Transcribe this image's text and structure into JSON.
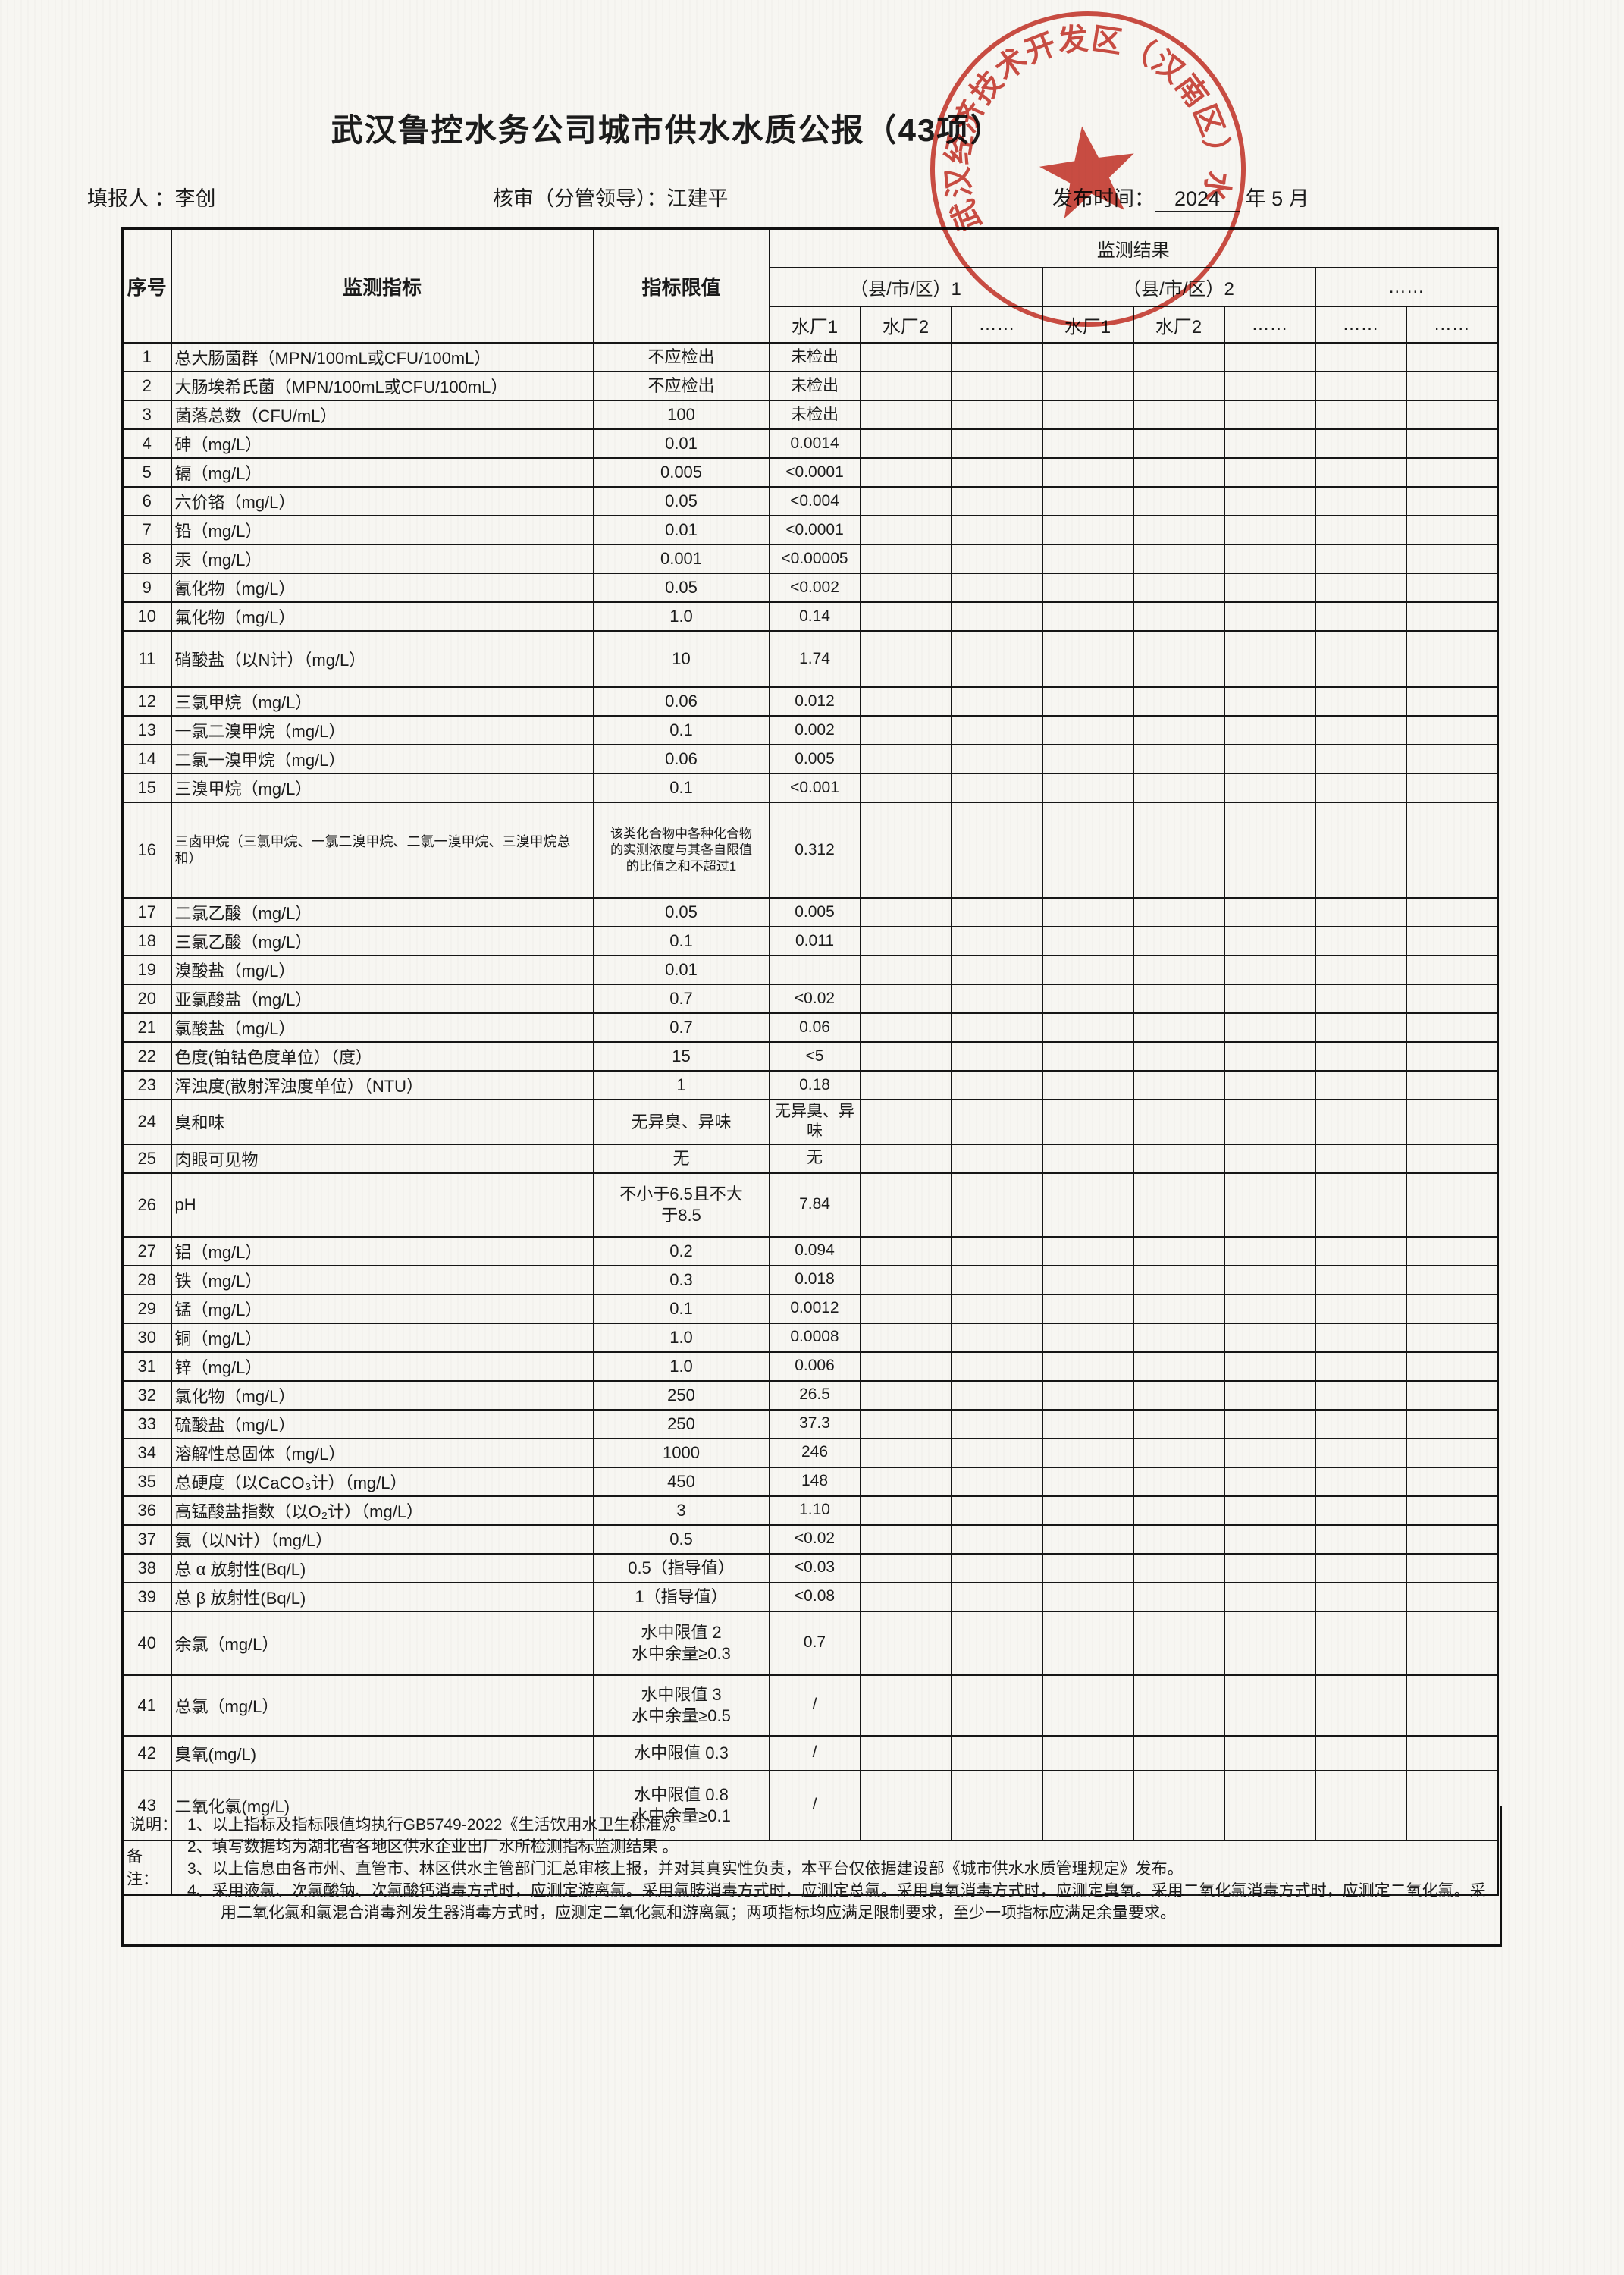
{
  "header": {
    "title": "武汉鲁控水务公司城市供水水质公报（43项）",
    "filler_label": "填报人 ：",
    "filler_name": "李创",
    "reviewer_label": "核审（分管领导）：",
    "reviewer_name": "江建平",
    "publish_label": "发布时间：",
    "publish_year": "2024",
    "publish_suffix": "年 5 月"
  },
  "stamp": {
    "ring_text": "武汉经济技术开发区（汉南区）水务局",
    "color": "#c5281c"
  },
  "table": {
    "head": {
      "index": "序号",
      "indicator": "监测指标",
      "limit": "指标限值",
      "result": "监测结果",
      "region1": "（县/市/区）1",
      "region2": "（县/市/区）2",
      "region_dots": "……"
    },
    "plant_headers": [
      "水厂1",
      "水厂2",
      "……",
      "水厂1",
      "水厂2",
      "……",
      "……",
      "……"
    ],
    "rows": [
      {
        "no": "1",
        "indicator": "总大肠菌群（MPN/100mL或CFU/100mL）",
        "limit": "不应检出",
        "result": "未检出"
      },
      {
        "no": "2",
        "indicator": "大肠埃希氏菌（MPN/100mL或CFU/100mL）",
        "limit": "不应检出",
        "result": "未检出"
      },
      {
        "no": "3",
        "indicator": "菌落总数（CFU/mL）",
        "limit": "100",
        "result": "未检出"
      },
      {
        "no": "4",
        "indicator": "砷（mg/L）",
        "limit": "0.01",
        "result": "0.0014"
      },
      {
        "no": "5",
        "indicator": "镉（mg/L）",
        "limit": "0.005",
        "result": "<0.0001"
      },
      {
        "no": "6",
        "indicator": "六价铬（mg/L）",
        "limit": "0.05",
        "result": "<0.004"
      },
      {
        "no": "7",
        "indicator": "铅（mg/L）",
        "limit": "0.01",
        "result": "<0.0001"
      },
      {
        "no": "8",
        "indicator": "汞（mg/L）",
        "limit": "0.001",
        "result": "<0.00005"
      },
      {
        "no": "9",
        "indicator": "氰化物（mg/L）",
        "limit": "0.05",
        "result": "<0.002"
      },
      {
        "no": "10",
        "indicator": "氟化物（mg/L）",
        "limit": "1.0",
        "result": "0.14"
      },
      {
        "no": "11",
        "indicator": "硝酸盐（以N计）（mg/L）",
        "limit": "10",
        "result": "1.74"
      },
      {
        "no": "12",
        "indicator": "三氯甲烷（mg/L）",
        "limit": "0.06",
        "result": "0.012"
      },
      {
        "no": "13",
        "indicator": "一氯二溴甲烷（mg/L）",
        "limit": "0.1",
        "result": "0.002"
      },
      {
        "no": "14",
        "indicator": "二氯一溴甲烷（mg/L）",
        "limit": "0.06",
        "result": "0.005"
      },
      {
        "no": "15",
        "indicator": "三溴甲烷（mg/L）",
        "limit": "0.1",
        "result": "<0.001"
      },
      {
        "no": "16",
        "indicator": "三卤甲烷（三氯甲烷、一氯二溴甲烷、二氯一溴甲烷、三溴甲烷总和）",
        "limit": "该类化合物中各种化合物\n的实测浓度与其各自限值\n的比值之和不超过1",
        "result": "0.312"
      },
      {
        "no": "17",
        "indicator": "二氯乙酸（mg/L）",
        "limit": "0.05",
        "result": "0.005"
      },
      {
        "no": "18",
        "indicator": "三氯乙酸（mg/L）",
        "limit": "0.1",
        "result": "0.011"
      },
      {
        "no": "19",
        "indicator": "溴酸盐（mg/L）",
        "limit": "0.01",
        "result": ""
      },
      {
        "no": "20",
        "indicator": "亚氯酸盐（mg/L）",
        "limit": "0.7",
        "result": "<0.02"
      },
      {
        "no": "21",
        "indicator": "氯酸盐（mg/L）",
        "limit": "0.7",
        "result": "0.06"
      },
      {
        "no": "22",
        "indicator": "色度(铂钴色度单位）（度）",
        "limit": "15",
        "result": "<5"
      },
      {
        "no": "23",
        "indicator": "浑浊度(散射浑浊度单位）（NTU）",
        "limit": "1",
        "result": "0.18"
      },
      {
        "no": "24",
        "indicator": "臭和味",
        "limit": "无异臭、异味",
        "result": "无异臭、异味"
      },
      {
        "no": "25",
        "indicator": "肉眼可见物",
        "limit": "无",
        "result": "无"
      },
      {
        "no": "26",
        "indicator": "pH",
        "limit": "不小于6.5且不大\n于8.5",
        "result": "7.84"
      },
      {
        "no": "27",
        "indicator": "铝（mg/L）",
        "limit": "0.2",
        "result": "0.094"
      },
      {
        "no": "28",
        "indicator": "铁（mg/L）",
        "limit": "0.3",
        "result": "0.018"
      },
      {
        "no": "29",
        "indicator": "锰（mg/L）",
        "limit": "0.1",
        "result": "0.0012"
      },
      {
        "no": "30",
        "indicator": "铜（mg/L）",
        "limit": "1.0",
        "result": "0.0008"
      },
      {
        "no": "31",
        "indicator": "锌（mg/L）",
        "limit": "1.0",
        "result": "0.006"
      },
      {
        "no": "32",
        "indicator": "氯化物（mg/L）",
        "limit": "250",
        "result": "26.5"
      },
      {
        "no": "33",
        "indicator": "硫酸盐（mg/L）",
        "limit": "250",
        "result": "37.3"
      },
      {
        "no": "34",
        "indicator": "溶解性总固体（mg/L）",
        "limit": "1000",
        "result": "246"
      },
      {
        "no": "35",
        "indicator": "总硬度（以CaCO₃计）（mg/L）",
        "limit": "450",
        "result": "148"
      },
      {
        "no": "36",
        "indicator": "高锰酸盐指数（以O₂计）（mg/L）",
        "limit": "3",
        "result": "1.10"
      },
      {
        "no": "37",
        "indicator": "氨（以N计）（mg/L）",
        "limit": "0.5",
        "result": "<0.02"
      },
      {
        "no": "38",
        "indicator": "总 α 放射性(Bq/L)",
        "limit": "0.5（指导值）",
        "result": "<0.03"
      },
      {
        "no": "39",
        "indicator": "总 β 放射性(Bq/L)",
        "limit": "1（指导值）",
        "result": "<0.08"
      },
      {
        "no": "40",
        "indicator": "余氯（mg/L）",
        "limit": "水中限值 2\n水中余量≥0.3",
        "result": "0.7"
      },
      {
        "no": "41",
        "indicator": "总氯（mg/L）",
        "limit": "水中限值 3\n水中余量≥0.5",
        "result": "/"
      },
      {
        "no": "42",
        "indicator": "臭氧(mg/L)",
        "limit": "水中限值 0.3",
        "result": "/"
      },
      {
        "no": "43",
        "indicator": "二氧化氯(mg/L)",
        "limit": "水中限值 0.8\n水中余量≥0.1",
        "result": "/"
      }
    ]
  },
  "remark": {
    "label": "备注："
  },
  "notes": {
    "label": "说明：",
    "items": [
      "1、以上指标及指标限值均执行GB5749-2022《生活饮用水卫生标准》。",
      "2、填写数据均为湖北省各地区供水企业出厂水所检测指标监测结果 。",
      "3、以上信息由各市州、直管市、林区供水主管部门汇总审核上报，并对其真实性负责，本平台仅依据建设部《城市供水水质管理规定》发布。",
      "4、采用液氯、次氯酸钠、次氯酸钙消毒方式时，应测定游离氯。采用氯胺消毒方式时，应测定总氯。采用臭氧消毒方式时，应测定臭氧。采用二氧化氯消毒方式时，应测定二氧化氯。采用二氧化氯和氯混合消毒剂发生器消毒方式时，应测定二氧化氯和游离氯；两项指标均应满足限制要求，至少一项指标应满足余量要求。"
    ]
  }
}
